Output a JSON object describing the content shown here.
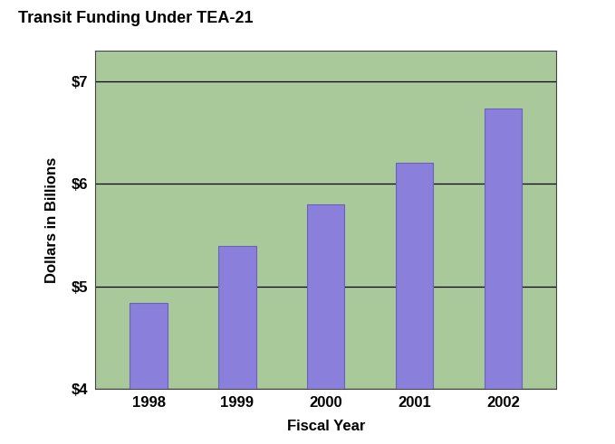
{
  "chart_data": {
    "type": "bar",
    "title": "Transit Funding Under TEA-21",
    "x_label": "Fiscal Year",
    "y_label": "Dollars in Billions",
    "categories": [
      "1998",
      "1999",
      "2000",
      "2001",
      "2002"
    ],
    "values": [
      4.84,
      5.39,
      5.8,
      6.21,
      6.74
    ],
    "color": "#8a80dc",
    "ylim": [
      4,
      7.3
    ],
    "yticks": [
      {
        "value": 4,
        "label": "$4"
      },
      {
        "value": 5,
        "label": "$5"
      },
      {
        "value": 6,
        "label": "$6"
      },
      {
        "value": 7,
        "label": "$7"
      }
    ],
    "grid": true
  }
}
